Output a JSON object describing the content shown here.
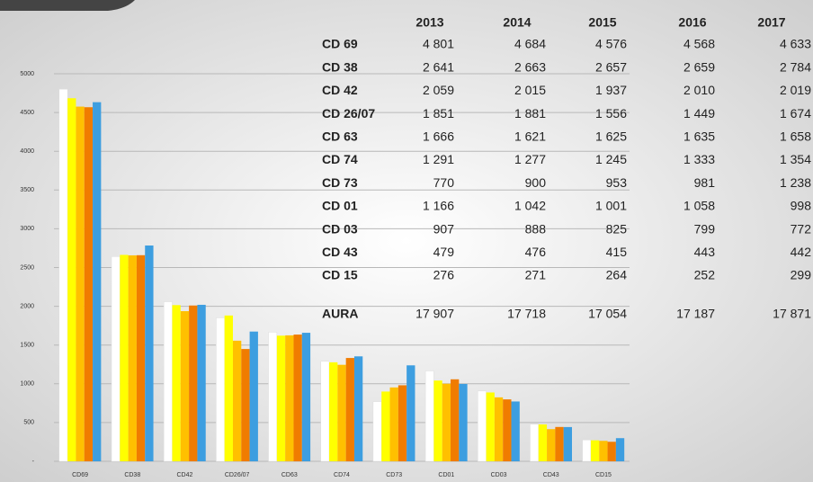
{
  "chart_data": {
    "type": "bar",
    "categories": [
      "CD69",
      "CD38",
      "CD42",
      "CD26/07",
      "CD63",
      "CD74",
      "CD73",
      "CD01",
      "CD03",
      "CD43",
      "CD15"
    ],
    "row_labels": [
      "CD 69",
      "CD 38",
      "CD 42",
      "CD 26/07",
      "CD 63",
      "CD 74",
      "CD 73",
      "CD 01",
      "CD 03",
      "CD 43",
      "CD 15"
    ],
    "series": [
      {
        "name": "2013",
        "color": "#ffffff",
        "values": [
          4801,
          2641,
          2059,
          1851,
          1666,
          1291,
          770,
          1166,
          907,
          479,
          276
        ],
        "value_labels": [
          "4 801",
          "2 641",
          "2 059",
          "1 851",
          "1 666",
          "1 291",
          "770",
          "1 166",
          "907",
          "479",
          "276"
        ]
      },
      {
        "name": "2014",
        "color": "#ffff00",
        "values": [
          4684,
          2663,
          2015,
          1881,
          1621,
          1277,
          900,
          1042,
          888,
          476,
          271
        ],
        "value_labels": [
          "4 684",
          "2 663",
          "2 015",
          "1 881",
          "1 621",
          "1 277",
          "900",
          "1 042",
          "888",
          "476",
          "271"
        ]
      },
      {
        "name": "2015",
        "color": "#ffc000",
        "values": [
          4576,
          2657,
          1937,
          1556,
          1625,
          1245,
          953,
          1001,
          825,
          415,
          264
        ],
        "value_labels": [
          "4 576",
          "2 657",
          "1 937",
          "1 556",
          "1 625",
          "1 245",
          "953",
          "1 001",
          "825",
          "415",
          "264"
        ]
      },
      {
        "name": "2016",
        "color": "#f07c00",
        "values": [
          4568,
          2659,
          2010,
          1449,
          1635,
          1333,
          981,
          1058,
          799,
          443,
          252
        ],
        "value_labels": [
          "4 568",
          "2 659",
          "2 010",
          "1 449",
          "1 635",
          "1 333",
          "981",
          "1 058",
          "799",
          "443",
          "252"
        ]
      },
      {
        "name": "2017",
        "color": "#3d9ee0",
        "values": [
          4633,
          2784,
          2019,
          1674,
          1658,
          1354,
          1238,
          998,
          772,
          442,
          299
        ],
        "value_labels": [
          "4 633",
          "2 784",
          "2 019",
          "1 674",
          "1 658",
          "1 354",
          "1 238",
          "998",
          "772",
          "442",
          "299"
        ]
      }
    ],
    "total": {
      "label": "AURA",
      "values": [
        17907,
        17718,
        17054,
        17187,
        17871
      ],
      "value_labels": [
        "17 907",
        "17 718",
        "17 054",
        "17 187",
        "17 871"
      ]
    },
    "ylim": [
      0,
      5000
    ],
    "yticks": [
      {
        "value": 0,
        "label": "-"
      },
      500,
      1000,
      1500,
      2000,
      2500,
      3000,
      3500,
      4000,
      4500,
      5000
    ],
    "grid": true
  }
}
